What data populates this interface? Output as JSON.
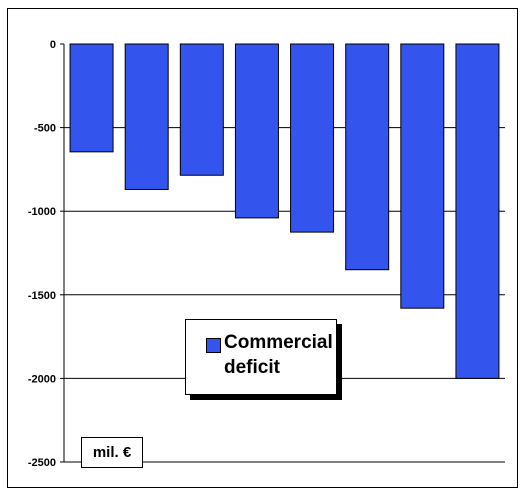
{
  "chart_data": {
    "type": "bar",
    "categories": [
      "",
      "",
      "",
      "",
      "",
      "",
      "",
      ""
    ],
    "series": [
      {
        "name": "Commercial deficit",
        "values": [
          -645,
          -870,
          -785,
          -1040,
          -1125,
          -1350,
          -1580,
          -2000
        ]
      }
    ],
    "ylim": [
      -2500,
      0
    ],
    "yticks": [
      0,
      -500,
      -1000,
      -1500,
      -2000,
      -2500
    ],
    "grid": true,
    "legend_position": "center-bottom",
    "unit_label": "mil. €",
    "bar_color": "#3355ee"
  }
}
